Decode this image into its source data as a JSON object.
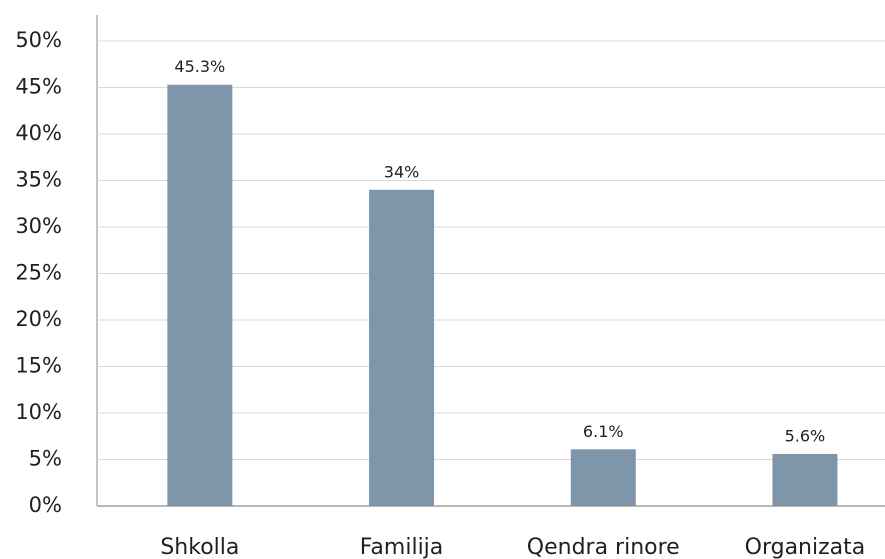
{
  "chart_data": {
    "type": "bar",
    "categories": [
      "Shkolla",
      "Familija",
      "Qendra rinore",
      "Organizata"
    ],
    "values": [
      45.3,
      34,
      6.1,
      5.6
    ],
    "value_labels": [
      "45.3%",
      "34%",
      "6.1%",
      "5.6%"
    ],
    "color": "#7f96aa",
    "ylim": [
      0,
      50
    ],
    "yticks": [
      {
        "value": 0,
        "label": "0%"
      },
      {
        "value": 5,
        "label": "5%"
      },
      {
        "value": 10,
        "label": "10%"
      },
      {
        "value": 15,
        "label": "15%"
      },
      {
        "value": 20,
        "label": "20%"
      },
      {
        "value": 25,
        "label": "25%"
      },
      {
        "value": 30,
        "label": "30%"
      },
      {
        "value": 35,
        "label": "35%"
      },
      {
        "value": 40,
        "label": "40%"
      },
      {
        "value": 45,
        "label": "45%"
      },
      {
        "value": 50,
        "label": "50%"
      }
    ],
    "grid": true
  }
}
